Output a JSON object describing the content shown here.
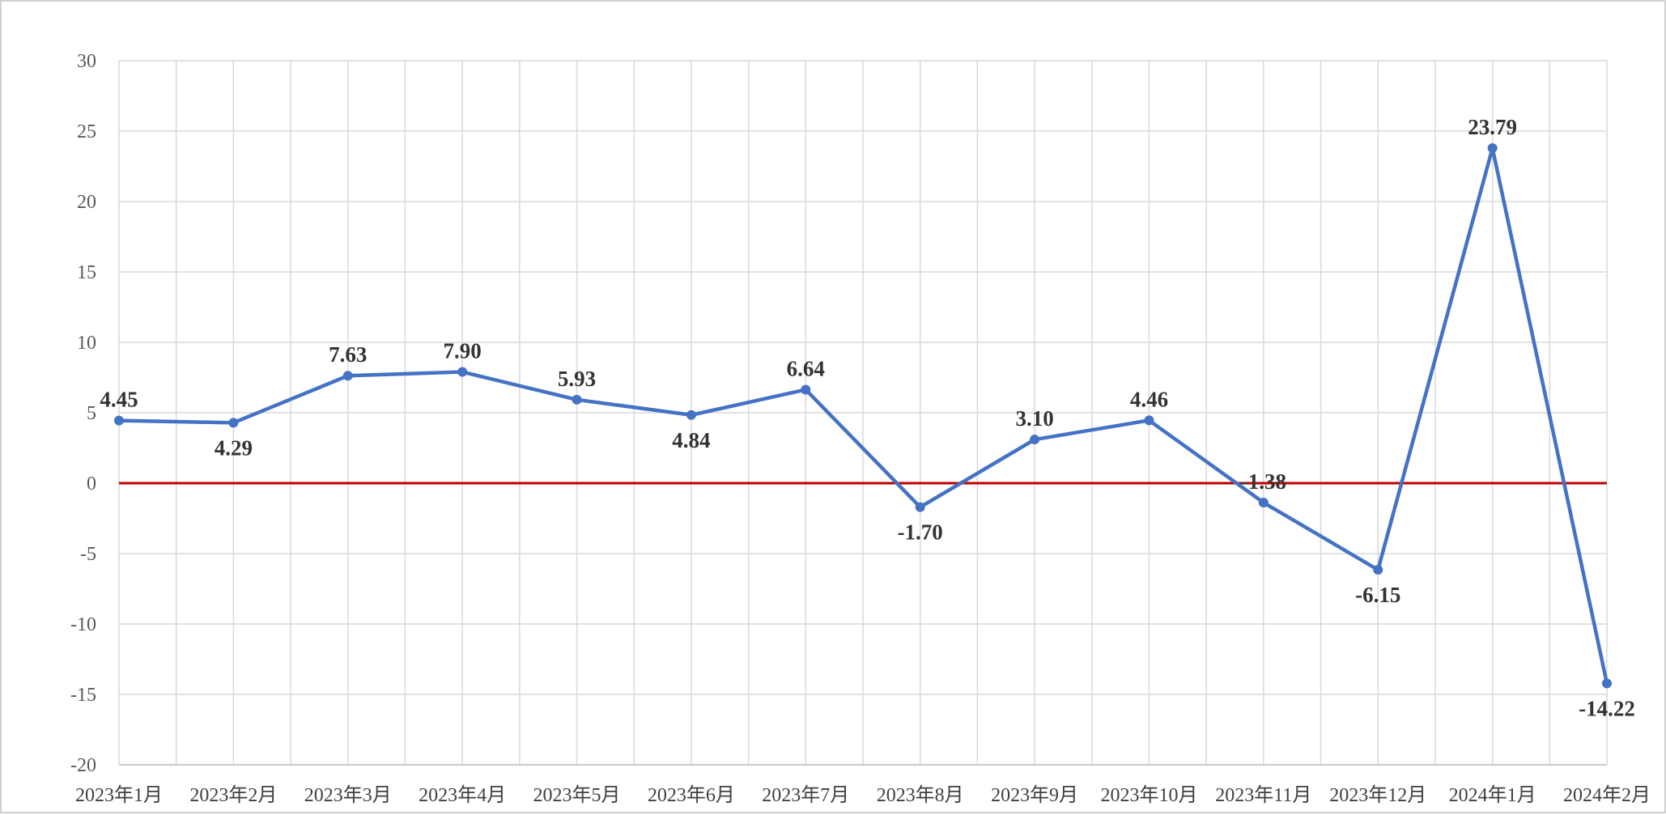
{
  "chart_data": {
    "type": "line",
    "categories": [
      "2023年1月",
      "2023年2月",
      "2023年3月",
      "2023年4月",
      "2023年5月",
      "2023年6月",
      "2023年7月",
      "2023年8月",
      "2023年9月",
      "2023年10月",
      "2023年11月",
      "2023年12月",
      "2024年1月",
      "2024年2月"
    ],
    "series": [
      {
        "values": [
          4.45,
          4.29,
          7.63,
          7.9,
          5.93,
          4.84,
          6.64,
          -1.7,
          3.1,
          4.46,
          -1.38,
          -6.15,
          23.79,
          -14.22
        ],
        "labels": [
          "4.45",
          "4.29",
          "7.63",
          "7.90",
          "5.93",
          "4.84",
          "6.64",
          "-1.70",
          "3.10",
          "4.46",
          "-1.38",
          "-6.15",
          "23.79",
          "-14.22"
        ],
        "color": "#4472C4"
      }
    ],
    "yticks": [
      "-20",
      "-15",
      "-10",
      "-5",
      "0",
      "5",
      "10",
      "15",
      "20",
      "25",
      "30"
    ],
    "ylim": [
      -20,
      30
    ],
    "grid": true,
    "reference_line": {
      "value": 0,
      "color": "#C00000"
    },
    "title": "",
    "xlabel": "",
    "ylabel": "",
    "legend": "none"
  }
}
